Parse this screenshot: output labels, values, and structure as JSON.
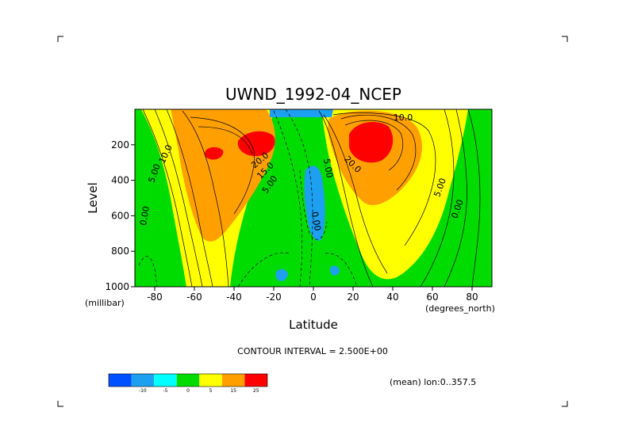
{
  "chart_data": {
    "type": "heatmap",
    "title": "UWND_1992-04_NCEP",
    "xlabel": "Latitude",
    "ylabel": "Level",
    "x_units": "(degrees_north)",
    "y_units": "(millibar)",
    "xlim": [
      -90,
      90
    ],
    "ylim": [
      1000,
      0
    ],
    "x_ticks": [
      -80,
      -60,
      -40,
      -20,
      0,
      20,
      40,
      60,
      80
    ],
    "y_ticks": [
      200,
      400,
      600,
      800,
      1000
    ],
    "contour_interval_text": "CONTOUR INTERVAL = 2.500E+00",
    "footnote": "(mean) lon:0..357.5",
    "colorbar": {
      "labels": [
        "-10",
        "-5",
        "0",
        "5",
        "15",
        "25"
      ],
      "colors": [
        "#0050ff",
        "#1ea0f0",
        "#00ffff",
        "#00dc00",
        "#ffff00",
        "#ffa000",
        "#ff0000"
      ],
      "bounds": [
        -15,
        -10,
        -5,
        0,
        5,
        15,
        25,
        35
      ]
    },
    "contour_labels": [
      "10.0",
      "5.00",
      "0.00",
      "20.0",
      "15.0",
      "5.00",
      "0.00",
      "10.0",
      "20.0",
      "5.00",
      "0.00",
      "5.00"
    ],
    "features": [
      {
        "lat": -28,
        "level": 180,
        "u": 27
      },
      {
        "lat": -52,
        "level": 250,
        "u": 25
      },
      {
        "lat": -60,
        "level": 300,
        "u": 20
      },
      {
        "lat": 25,
        "level": 180,
        "u": 31
      },
      {
        "lat": 0,
        "level": 470,
        "u": -8
      },
      {
        "lat": -15,
        "level": 920,
        "u": -6
      },
      {
        "lat": 12,
        "level": 900,
        "u": -6
      }
    ]
  }
}
